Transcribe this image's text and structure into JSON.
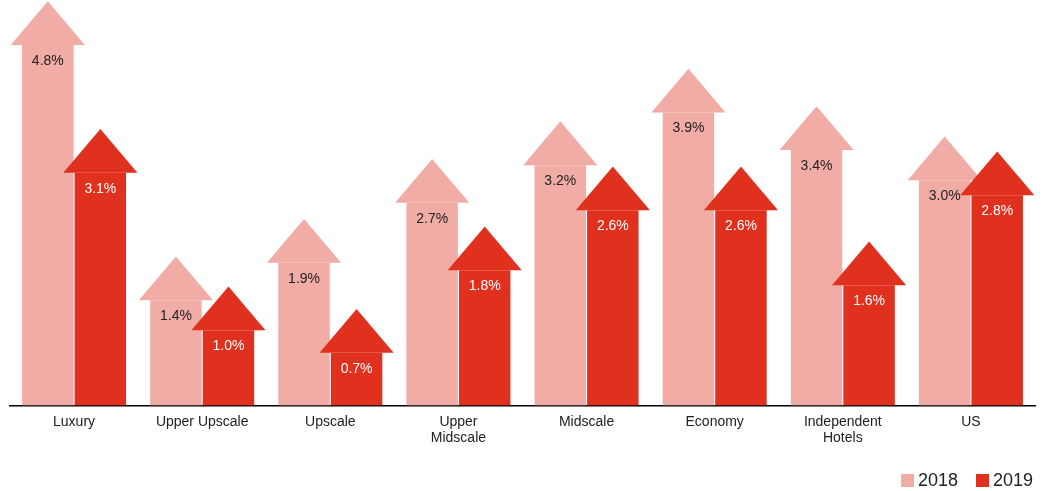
{
  "chart_data": {
    "type": "bar",
    "categories": [
      "Luxury",
      "Upper Upscale",
      "Upscale",
      "Upper\nMidscale",
      "Midscale",
      "Economy",
      "Independent\nHotels",
      "US"
    ],
    "series": [
      {
        "name": "2018",
        "color": "#f2aca6",
        "values": [
          4.8,
          1.4,
          1.9,
          2.7,
          3.2,
          3.9,
          3.4,
          3.0
        ],
        "value_labels": [
          "4.8%",
          "1.4%",
          "1.9%",
          "2.7%",
          "3.2%",
          "3.9%",
          "3.4%",
          "3.0%"
        ]
      },
      {
        "name": "2019",
        "color": "#e0301e",
        "values": [
          3.1,
          1.0,
          0.7,
          1.8,
          2.6,
          2.6,
          1.6,
          2.8
        ],
        "value_labels": [
          "3.1%",
          "1.0%",
          "0.7%",
          "1.8%",
          "2.6%",
          "2.6%",
          "1.6%",
          "2.8%"
        ]
      }
    ],
    "legend": "bottom right",
    "grid": false
  }
}
